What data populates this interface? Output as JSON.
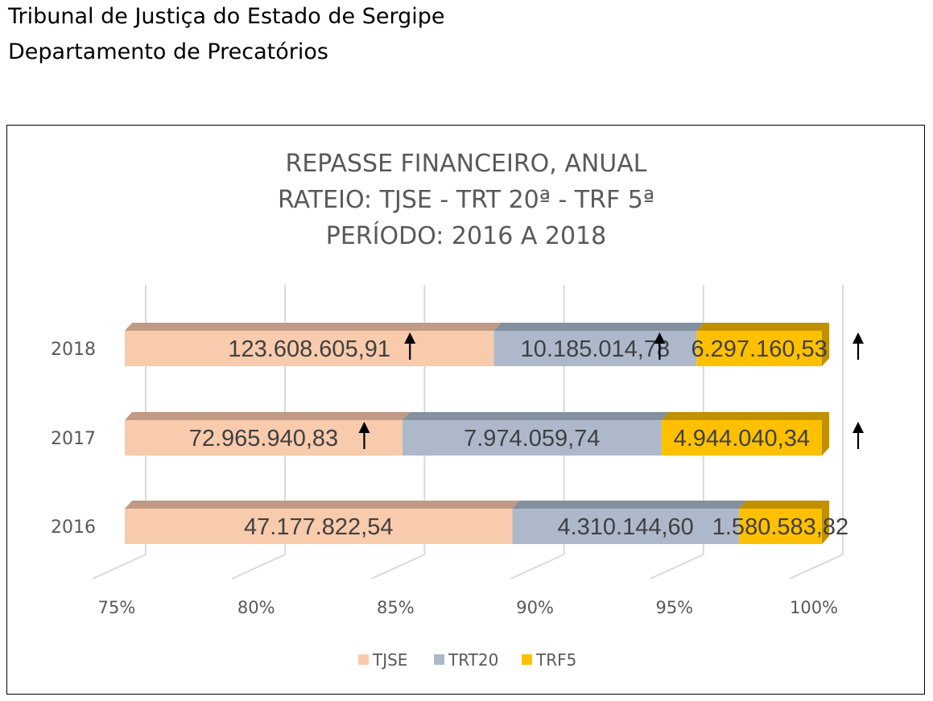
{
  "header": {
    "line1": "Tribunal de Justiça do Estado de Sergipe",
    "line2": "Departamento de Precatórios"
  },
  "chart_data": {
    "type": "bar",
    "orientation": "horizontal",
    "stacked": "percent",
    "style": "3d",
    "title": [
      "REPASSE FINANCEIRO, ANUAL",
      "RATEIO: TJSE - TRT 20ª - TRF 5ª",
      "PERÍODO: 2016 A 2018"
    ],
    "categories": [
      "2018",
      "2017",
      "2016"
    ],
    "series": [
      {
        "name": "TJSE",
        "color": "#F8CBAD",
        "top_color": "#C09A85",
        "values": [
          123608605.91,
          72965940.83,
          47177822.54
        ],
        "labels": [
          "123.608.605,91",
          "72.965.940,83",
          "47.177.822,54"
        ]
      },
      {
        "name": "TRT20",
        "color": "#ADB9CA",
        "top_color": "#84909E",
        "values": [
          10185014.78,
          7974059.74,
          4310144.6
        ],
        "labels": [
          "10.185.014,78",
          "7.974.059,74",
          "4.310.144,60"
        ]
      },
      {
        "name": "TRF5",
        "color": "#FFC000",
        "top_color": "#C09000",
        "values": [
          6297160.53,
          4944040.34,
          1580583.82
        ],
        "labels": [
          "6.297.160,53",
          "4.944.040,34",
          "1.580.583,82"
        ]
      }
    ],
    "xlim": [
      0.75,
      1.0
    ],
    "x_ticks": [
      "75%",
      "80%",
      "85%",
      "90%",
      "95%",
      "100%"
    ],
    "grid": true,
    "legend": "bottom",
    "arrows": {
      "2018": [
        "TJSE",
        "TRT20",
        "TRF5"
      ],
      "2017": [
        "TJSE",
        "TRF5"
      ],
      "2016": []
    }
  }
}
